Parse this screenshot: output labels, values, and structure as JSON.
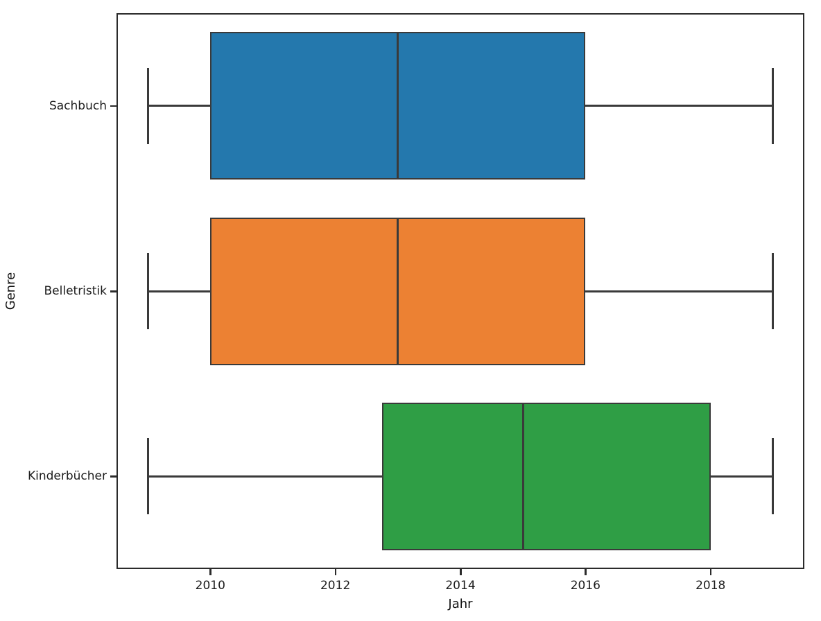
{
  "figure": {
    "background": "#ffffff",
    "spine_color": "#2b2b2b",
    "box_line_color": "#3a3a3a"
  },
  "chart_data": {
    "type": "boxplot",
    "orientation": "horizontal",
    "title": "",
    "xlabel": "Jahr",
    "ylabel": "Genre",
    "xlim": [
      2008.5,
      2019.5
    ],
    "x_ticks": [
      "2010",
      "2012",
      "2014",
      "2016",
      "2018"
    ],
    "x_tick_values": [
      2010,
      2012,
      2014,
      2016,
      2018
    ],
    "categories": [
      "Sachbuch",
      "Belletristik",
      "Kinderbücher"
    ],
    "grid": false,
    "legend": null,
    "series": [
      {
        "name": "Sachbuch",
        "whisker_low": 2009,
        "q1": 2010,
        "median": 2013,
        "q3": 2016,
        "whisker_high": 2019,
        "color": "#2478ad"
      },
      {
        "name": "Belletristik",
        "whisker_low": 2009,
        "q1": 2010,
        "median": 2013,
        "q3": 2016,
        "whisker_high": 2019,
        "color": "#ec8133"
      },
      {
        "name": "Kinderbücher",
        "whisker_low": 2009,
        "q1": 2012.75,
        "median": 2015,
        "q3": 2018,
        "whisker_high": 2019,
        "color": "#2f9e45"
      }
    ]
  }
}
